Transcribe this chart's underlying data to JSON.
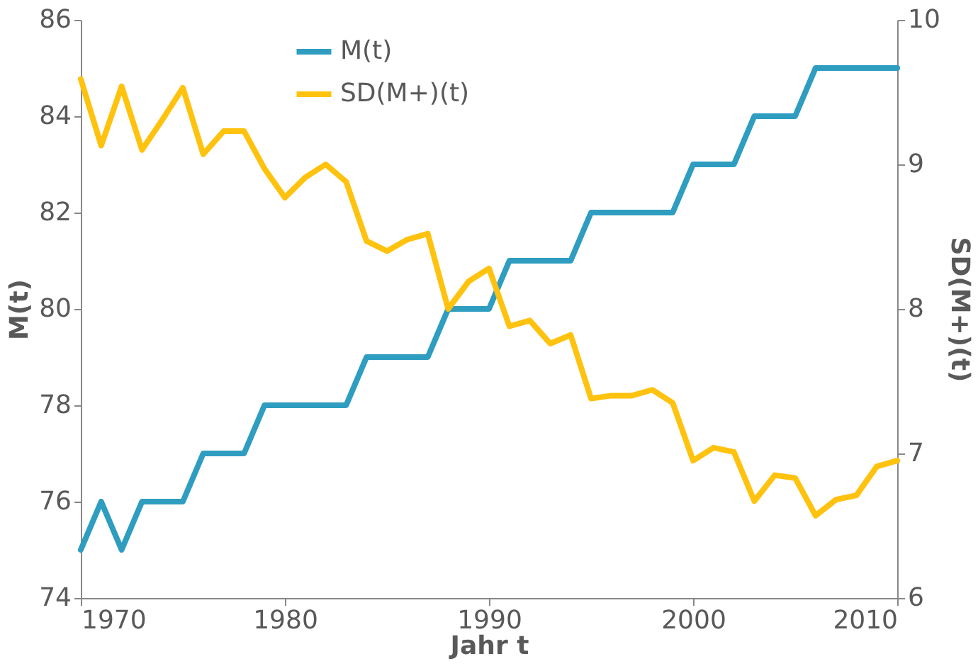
{
  "chart_data": {
    "type": "line",
    "xlabel": "Jahr t",
    "ylabel": "M(t)",
    "y2label": "SD(M+)(t)",
    "xlim": [
      1970,
      2010
    ],
    "xticks": [
      1970,
      1980,
      1990,
      2000,
      2010
    ],
    "ylim": [
      74,
      86
    ],
    "yticks": [
      74,
      76,
      78,
      80,
      82,
      84,
      86
    ],
    "y2lim": [
      6,
      10
    ],
    "y2ticks": [
      6,
      7,
      8,
      9,
      10
    ],
    "grid": false,
    "legend": "top",
    "marker": "none",
    "line_style": "solid",
    "x": [
      1970,
      1971,
      1972,
      1973,
      1974,
      1975,
      1976,
      1977,
      1978,
      1979,
      1980,
      1981,
      1982,
      1983,
      1984,
      1985,
      1986,
      1987,
      1988,
      1989,
      1990,
      1991,
      1992,
      1993,
      1994,
      1995,
      1996,
      1997,
      1998,
      1999,
      2000,
      2001,
      2002,
      2003,
      2004,
      2005,
      2006,
      2007,
      2008,
      2009,
      2010
    ],
    "series": [
      {
        "name": "M(t)",
        "color": "#2e9dc0",
        "values": [
          75,
          76,
          75,
          76,
          76,
          76,
          77,
          77,
          77,
          78,
          78,
          78,
          78,
          78,
          79,
          79,
          79,
          79,
          80,
          80,
          80,
          81,
          81,
          81,
          81,
          82,
          82,
          82,
          82,
          82,
          83,
          83,
          83,
          84,
          84,
          84,
          85,
          85,
          85,
          85,
          85
        ]
      },
      {
        "name": "SD(M+)(t)",
        "color": "#ffc20e",
        "axis": "y2",
        "values": [
          9.59,
          9.13,
          9.54,
          9.1,
          9.31,
          9.53,
          9.07,
          9.23,
          9.23,
          8.97,
          8.77,
          8.91,
          9.0,
          8.88,
          8.47,
          8.4,
          8.48,
          8.52,
          8.0,
          8.19,
          8.28,
          7.88,
          7.92,
          7.76,
          7.82,
          7.38,
          7.4,
          7.4,
          7.44,
          7.35,
          6.95,
          7.04,
          7.01,
          6.67,
          6.85,
          6.83,
          6.57,
          6.68,
          6.71,
          6.91,
          6.95
        ]
      }
    ]
  }
}
